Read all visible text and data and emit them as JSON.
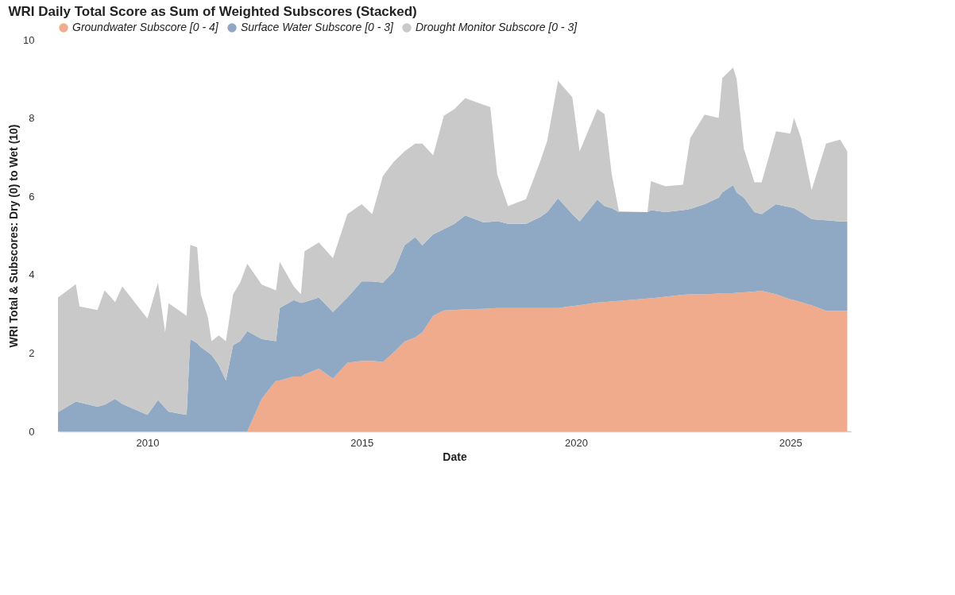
{
  "chart_data": {
    "type": "area",
    "stacked": true,
    "title": "WRI Daily Total Score as Sum of Weighted Subscores (Stacked)",
    "xlabel": "Date",
    "ylabel": "WRI Total & Subscores: Dry (0) to Wet (10)",
    "legend": "top left",
    "xlim": [
      "2007-12",
      "2026-06"
    ],
    "xticks": [
      "2010",
      "2015",
      "2020",
      "2025"
    ],
    "ylim": [
      0,
      10
    ],
    "yticks": [
      0,
      2,
      4,
      6,
      8,
      10
    ],
    "x": [
      "2007-12",
      "2008-05",
      "2008-06",
      "2008-11",
      "2009-01",
      "2009-04",
      "2009-06",
      "2010-01",
      "2010-04",
      "2010-06",
      "2010-07",
      "2010-12",
      "2011-01",
      "2011-03",
      "2011-04",
      "2011-06",
      "2011-07",
      "2011-09",
      "2011-11",
      "2012-01",
      "2012-03",
      "2012-05",
      "2012-09",
      "2013-01",
      "2013-02",
      "2013-06",
      "2013-08",
      "2013-09",
      "2014-01",
      "2014-05",
      "2014-09",
      "2015-01",
      "2015-04",
      "2015-07",
      "2015-10",
      "2016-01",
      "2016-04",
      "2016-06",
      "2016-09",
      "2016-12",
      "2017-03",
      "2017-06",
      "2017-11",
      "2018-01",
      "2018-03",
      "2018-06",
      "2018-11",
      "2019-03",
      "2019-05",
      "2019-08",
      "2019-12",
      "2020-02",
      "2020-07",
      "2020-09",
      "2020-11",
      "2021-01",
      "2021-09",
      "2021-10",
      "2022-02",
      "2022-07",
      "2022-09",
      "2023-01",
      "2023-05",
      "2023-06",
      "2023-09",
      "2023-10",
      "2023-12",
      "2024-03",
      "2024-05",
      "2024-09",
      "2025-01",
      "2025-02",
      "2025-04",
      "2025-07",
      "2025-09",
      "2025-11",
      "2026-03",
      "2026-05"
    ],
    "series": [
      {
        "name": "Groundwater Subscore [0 - 4]",
        "color": "#f0aa8c",
        "values": [
          0,
          0,
          0,
          0,
          0,
          0,
          0,
          0,
          0,
          0,
          0,
          0,
          0,
          0,
          0,
          0,
          0,
          0,
          0,
          0,
          0,
          0,
          0.83,
          1.3,
          1.3,
          1.4,
          1.4,
          1.45,
          1.6,
          1.35,
          1.75,
          1.8,
          1.8,
          1.77,
          2.02,
          2.29,
          2.4,
          2.53,
          2.95,
          3.09,
          3.1,
          3.12,
          3.13,
          3.14,
          3.15,
          3.15,
          3.15,
          3.15,
          3.15,
          3.15,
          3.2,
          3.22,
          3.29,
          3.3,
          3.32,
          3.33,
          3.39,
          3.4,
          3.44,
          3.49,
          3.5,
          3.5,
          3.52,
          3.53,
          3.53,
          3.54,
          3.55,
          3.57,
          3.59,
          3.5,
          3.37,
          3.35,
          3.3,
          3.22,
          3.15,
          3.08,
          3.08,
          3.08
        ]
      },
      {
        "name": "Surface Water Subscore [0 - 3]",
        "color": "#8fa8c4",
        "values": [
          0.49,
          0.76,
          0.74,
          0.63,
          0.68,
          0.83,
          0.7,
          0.42,
          0.8,
          0.6,
          0.5,
          0.42,
          2.36,
          2.25,
          2.15,
          2.02,
          1.95,
          1.69,
          1.3,
          2.2,
          2.3,
          2.56,
          1.53,
          1.0,
          1.85,
          1.95,
          1.88,
          1.85,
          1.82,
          1.7,
          1.67,
          2.03,
          2.03,
          2.03,
          2.06,
          2.46,
          2.56,
          2.22,
          2.08,
          2.07,
          2.2,
          2.39,
          2.21,
          2.21,
          2.22,
          2.15,
          2.15,
          2.32,
          2.45,
          2.8,
          2.35,
          2.14,
          2.63,
          2.45,
          2.38,
          2.27,
          2.21,
          2.25,
          2.16,
          2.16,
          2.18,
          2.3,
          2.45,
          2.57,
          2.76,
          2.56,
          2.42,
          2.03,
          1.96,
          2.3,
          2.35,
          2.35,
          2.3,
          2.2,
          2.25,
          2.31,
          2.28,
          2.28
        ]
      },
      {
        "name": "Drought Monitor Subscore [0 - 3]",
        "color": "#c9c9c9",
        "values": [
          2.93,
          3.0,
          2.45,
          2.47,
          2.92,
          2.47,
          3.0,
          2.46,
          3.0,
          1.93,
          2.77,
          2.53,
          2.4,
          2.45,
          1.35,
          0.88,
          0.35,
          0.76,
          1.0,
          1.3,
          1.5,
          1.72,
          1.39,
          1.3,
          1.18,
          0.35,
          0.22,
          1.3,
          1.4,
          1.37,
          2.13,
          1.97,
          1.72,
          2.72,
          2.8,
          2.4,
          2.39,
          2.6,
          2.02,
          2.9,
          2.93,
          3.0,
          3.0,
          2.93,
          1.19,
          0.45,
          0.63,
          1.41,
          1.82,
          3.0,
          2.98,
          1.79,
          2.31,
          2.35,
          0.86,
          0.02,
          0,
          0.74,
          0.66,
          0.65,
          1.81,
          2.29,
          2.03,
          2.92,
          3.0,
          2.9,
          1.25,
          0.76,
          0.81,
          1.86,
          1.88,
          2.3,
          1.9,
          0.74,
          1.36,
          1.96,
          2.09,
          1.79
        ]
      }
    ]
  }
}
